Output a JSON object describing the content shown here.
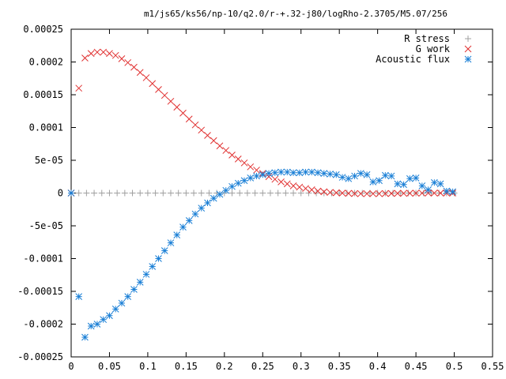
{
  "chart_data": {
    "type": "scatter",
    "title": "m1/js65/ks56/np-10/q2.0/r-+.32-j80/logRho-2.3705/M5.07/256",
    "xlabel": "",
    "ylabel": "",
    "xlim": [
      0,
      0.55
    ],
    "ylim": [
      -0.00025,
      0.00025
    ],
    "x_ticks": [
      0,
      0.05,
      0.1,
      0.15,
      0.2,
      0.25,
      0.3,
      0.35,
      0.4,
      0.45,
      0.5,
      0.55
    ],
    "x_tick_labels": [
      "0",
      "0.05",
      "0.1",
      "0.15",
      "0.2",
      "0.25",
      "0.3",
      "0.35",
      "0.4",
      "0.45",
      "0.5",
      "0.55"
    ],
    "y_ticks": [
      -0.00025,
      -0.0002,
      -0.00015,
      -0.0001,
      -5e-05,
      0,
      5e-05,
      0.0001,
      0.00015,
      0.0002,
      0.00025
    ],
    "y_tick_labels": [
      "-0.00025",
      "-0.0002",
      "-0.00015",
      "-0.0001",
      "-5e-05",
      "0",
      "5e-05",
      "0.0001",
      "0.00015",
      "0.0002",
      "0.00025"
    ],
    "grid": false,
    "legend_position": "top-right",
    "series": [
      {
        "name": "R stress",
        "marker": "plus",
        "color": "#a0a0a0",
        "x": [
          0.0,
          0.01,
          0.02,
          0.03,
          0.04,
          0.05,
          0.06,
          0.07,
          0.08,
          0.09,
          0.1,
          0.11,
          0.12,
          0.13,
          0.14,
          0.15,
          0.16,
          0.17,
          0.18,
          0.19,
          0.2,
          0.21,
          0.22,
          0.23,
          0.24,
          0.25,
          0.26,
          0.27,
          0.28,
          0.29,
          0.3,
          0.31,
          0.32,
          0.33,
          0.34,
          0.35,
          0.36,
          0.37,
          0.38,
          0.39,
          0.4,
          0.41,
          0.42,
          0.43,
          0.44,
          0.45,
          0.46,
          0.47,
          0.48,
          0.49,
          0.5
        ],
        "y": [
          0.0,
          0.0,
          0.0,
          0.0,
          0.0,
          0.0,
          0.0,
          0.0,
          0.0,
          0.0,
          0.0,
          0.0,
          0.0,
          0.0,
          0.0,
          0.0,
          0.0,
          0.0,
          0.0,
          0.0,
          0.0,
          0.0,
          0.0,
          0.0,
          0.0,
          0.0,
          0.0,
          0.0,
          0.0,
          0.0,
          0.0,
          0.0,
          0.0,
          0.0,
          0.0,
          0.0,
          0.0,
          0.0,
          0.0,
          0.0,
          0.0,
          0.0,
          0.0,
          0.0,
          0.0,
          0.0,
          0.0,
          0.0,
          0.0,
          0.0,
          0.0
        ]
      },
      {
        "name": "G work",
        "marker": "cross",
        "color": "#e03030",
        "x": [
          0.0,
          0.01,
          0.018,
          0.026,
          0.034,
          0.042,
          0.05,
          0.058,
          0.066,
          0.074,
          0.082,
          0.09,
          0.098,
          0.106,
          0.114,
          0.122,
          0.13,
          0.138,
          0.146,
          0.154,
          0.162,
          0.17,
          0.178,
          0.186,
          0.194,
          0.202,
          0.21,
          0.218,
          0.226,
          0.234,
          0.242,
          0.25,
          0.258,
          0.266,
          0.274,
          0.282,
          0.29,
          0.298,
          0.306,
          0.314,
          0.322,
          0.33,
          0.338,
          0.346,
          0.354,
          0.362,
          0.37,
          0.378,
          0.386,
          0.394,
          0.402,
          0.41,
          0.418,
          0.426,
          0.434,
          0.442,
          0.45,
          0.458,
          0.466,
          0.474,
          0.482,
          0.49,
          0.498
        ],
        "y": [
          0.0,
          0.00016,
          0.000206,
          0.000213,
          0.000215,
          0.000215,
          0.000213,
          0.00021,
          0.000205,
          0.000199,
          0.000192,
          0.000184,
          0.000176,
          0.000167,
          0.000158,
          0.000149,
          0.00014,
          0.000131,
          0.000122,
          0.000113,
          0.000104,
          9.6e-05,
          8.8e-05,
          8e-05,
          7.2e-05,
          6.5e-05,
          5.8e-05,
          5.2e-05,
          4.6e-05,
          4e-05,
          3.5e-05,
          3e-05,
          2.5e-05,
          2.1e-05,
          1.7e-05,
          1.4e-05,
          1.1e-05,
          9e-06,
          7e-06,
          5e-06,
          3e-06,
          2e-06,
          1e-06,
          5e-07,
          0.0,
          -5e-07,
          -8e-07,
          -1e-06,
          -1e-06,
          -1e-06,
          -1e-06,
          -8e-07,
          -6e-07,
          -5e-07,
          -4e-07,
          -3e-07,
          -2e-07,
          -1e-07,
          0.0,
          0.0,
          0.0,
          0.0,
          0.0
        ]
      },
      {
        "name": "Acoustic flux",
        "marker": "star",
        "color": "#1a7fd6",
        "x": [
          0.0,
          0.01,
          0.018,
          0.026,
          0.034,
          0.042,
          0.05,
          0.058,
          0.066,
          0.074,
          0.082,
          0.09,
          0.098,
          0.106,
          0.114,
          0.122,
          0.13,
          0.138,
          0.146,
          0.154,
          0.162,
          0.17,
          0.178,
          0.186,
          0.194,
          0.202,
          0.21,
          0.218,
          0.226,
          0.234,
          0.242,
          0.25,
          0.258,
          0.266,
          0.274,
          0.282,
          0.29,
          0.298,
          0.306,
          0.314,
          0.322,
          0.33,
          0.338,
          0.346,
          0.354,
          0.362,
          0.37,
          0.378,
          0.386,
          0.394,
          0.402,
          0.41,
          0.418,
          0.426,
          0.434,
          0.442,
          0.45,
          0.458,
          0.466,
          0.474,
          0.482,
          0.49,
          0.498
        ],
        "y": [
          0.0,
          -0.000158,
          -0.00022,
          -0.000203,
          -0.0002,
          -0.000193,
          -0.000187,
          -0.000177,
          -0.000168,
          -0.000158,
          -0.000147,
          -0.000136,
          -0.000124,
          -0.000112,
          -0.0001,
          -8.8e-05,
          -7.6e-05,
          -6.4e-05,
          -5.2e-05,
          -4.2e-05,
          -3.2e-05,
          -2.3e-05,
          -1.5e-05,
          -8e-06,
          -2e-06,
          4e-06,
          1e-05,
          1.5e-05,
          1.9e-05,
          2.3e-05,
          2.6e-05,
          2.8e-05,
          3e-05,
          3.1e-05,
          3.2e-05,
          3.2e-05,
          3.1e-05,
          3.1e-05,
          3.2e-05,
          3.2e-05,
          3.1e-05,
          3e-05,
          2.9e-05,
          2.8e-05,
          2.4e-05,
          2.2e-05,
          2.6e-05,
          3e-05,
          2.8e-05,
          1.7e-05,
          1.9e-05,
          2.7e-05,
          2.6e-05,
          1.4e-05,
          1.3e-05,
          2.2e-05,
          2.3e-05,
          1.1e-05,
          5e-06,
          1.6e-05,
          1.4e-05,
          3e-06,
          2e-06
        ]
      }
    ]
  }
}
